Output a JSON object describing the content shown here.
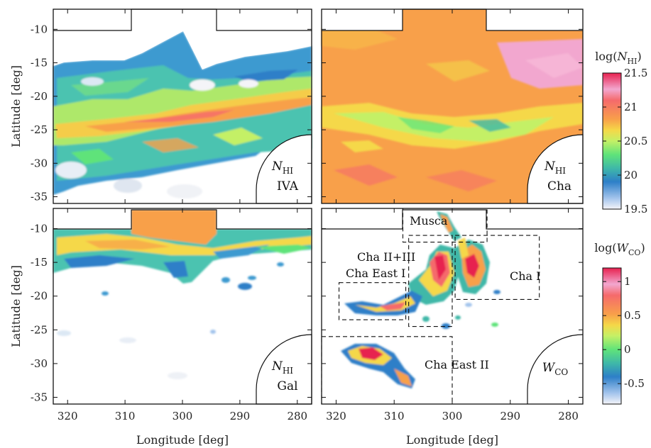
{
  "chart_data": {
    "type": "heatmap",
    "x_axis": {
      "label": "Longitude [deg]",
      "range": [
        322.5,
        277.5
      ],
      "ticks": [
        320,
        310,
        300,
        290,
        280
      ],
      "tick_labels": [
        "320",
        "310",
        "300",
        "290",
        "280"
      ]
    },
    "y_axis": {
      "label": "Latitude [deg]",
      "range": [
        -36,
        -7
      ],
      "ticks": [
        -10,
        -15,
        -20,
        -25,
        -30,
        -35
      ],
      "tick_labels": [
        "-10",
        "-15",
        "-20",
        "-25",
        "-30",
        "-35"
      ]
    },
    "panels": [
      {
        "id": "ivag",
        "label_symbol": "N",
        "label_sub": "HI",
        "label_line2": "IVA",
        "quantity": "NHI"
      },
      {
        "id": "cha",
        "label_symbol": "N",
        "label_sub": "HI",
        "label_line2": "Cha",
        "quantity": "NHI"
      },
      {
        "id": "gal",
        "label_symbol": "N",
        "label_sub": "HI",
        "label_line2": "Gal",
        "quantity": "NHI"
      },
      {
        "id": "wco",
        "label_symbol": "W",
        "label_sub": "CO",
        "label_line2": "",
        "quantity": "WCO"
      }
    ],
    "colorbars": [
      {
        "id": "nhi",
        "title_prefix": "log(",
        "title_symbol": "N",
        "title_sub": "HI",
        "title_suffix": ")",
        "range": [
          19.5,
          21.5
        ],
        "ticks": [
          21.5,
          21,
          20.5,
          20,
          19.5
        ],
        "tick_labels": [
          "21.5",
          "21",
          "20.5",
          "20",
          "19.5"
        ]
      },
      {
        "id": "wco",
        "title_prefix": "log(",
        "title_symbol": "W",
        "title_sub": "CO",
        "title_suffix": ")",
        "range": [
          -0.8,
          1.2
        ],
        "ticks": [
          1,
          0.5,
          0,
          -0.5
        ],
        "tick_labels": [
          "1",
          "0.5",
          "0",
          "-0.5"
        ]
      }
    ],
    "regions": [
      {
        "name": "Musca",
        "lon": [
          308.5,
          294.0
        ],
        "lat": [
          -7.0,
          -12.0
        ]
      },
      {
        "name": "Cha II+III",
        "lon": [
          307.5,
          300.0
        ],
        "lat": [
          -11.0,
          -24.5
        ]
      },
      {
        "name": "Cha I",
        "lon": [
          299.5,
          285.0
        ],
        "lat": [
          -11.0,
          -20.5
        ]
      },
      {
        "name": "Cha East I",
        "lon": [
          319.5,
          308.0
        ],
        "lat": [
          -18.0,
          -23.5
        ]
      },
      {
        "name": "Cha East II",
        "lon": [
          322.5,
          300.0
        ],
        "lat": [
          -26.0,
          -36.0
        ]
      }
    ],
    "colormap": [
      "#f4f4f8",
      "#a3c4ec",
      "#2d7fc8",
      "#3fb8a8",
      "#5fe37a",
      "#c4f066",
      "#f5d848",
      "#f8a04a",
      "#f56a6c",
      "#f2a7cf",
      "#e7214f"
    ]
  }
}
